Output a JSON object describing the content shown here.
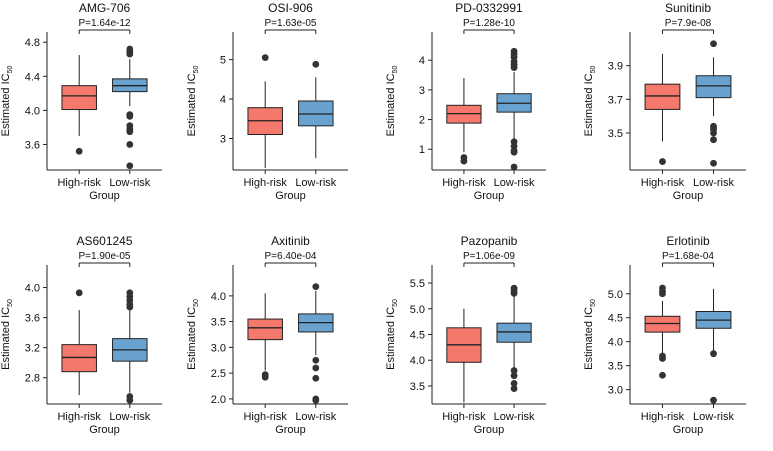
{
  "colors": {
    "high": "#f4786b",
    "low": "#6aa2cf",
    "stroke": "#222222"
  },
  "chart_data": [
    {
      "type": "boxplot",
      "title": "AMG-706",
      "p_label": "P=1.64e-12",
      "ylim": [
        3.3,
        4.92
      ],
      "yticks": [
        "3.6",
        "4.0",
        "4.4",
        "4.8"
      ],
      "ylabel": "Estimated IC",
      "ylabel_sub": "50",
      "xlabel": "Group",
      "categories": [
        "High-risk",
        "Low-risk"
      ],
      "boxes": [
        {
          "min": 3.7,
          "q1": 4.01,
          "median": 4.17,
          "q3": 4.29,
          "max": 4.65,
          "outliers": [
            3.52
          ]
        },
        {
          "min": 4.05,
          "q1": 4.22,
          "median": 4.29,
          "q3": 4.37,
          "max": 4.6,
          "outliers": [
            4.72,
            4.69,
            4.66,
            3.95,
            3.93,
            3.82,
            3.78,
            3.75,
            3.6,
            3.35
          ]
        }
      ]
    },
    {
      "type": "boxplot",
      "title": "OSI-906",
      "p_label": "P=1.63e-05",
      "ylim": [
        2.2,
        5.7
      ],
      "yticks": [
        "3",
        "4",
        "5"
      ],
      "ylabel": "Estimated IC",
      "ylabel_sub": "50",
      "xlabel": "Group",
      "categories": [
        "High-risk",
        "Low-risk"
      ],
      "boxes": [
        {
          "min": 2.25,
          "q1": 3.1,
          "median": 3.45,
          "q3": 3.78,
          "max": 4.45,
          "outliers": [
            5.05
          ]
        },
        {
          "min": 2.5,
          "q1": 3.32,
          "median": 3.62,
          "q3": 3.95,
          "max": 4.55,
          "outliers": [
            4.88
          ]
        }
      ]
    },
    {
      "type": "boxplot",
      "title": "PD-0332991",
      "p_label": "P=1.28e-10",
      "ylim": [
        0.3,
        4.95
      ],
      "yticks": [
        "1",
        "2",
        "3",
        "4"
      ],
      "ylabel": "Estimated IC",
      "ylabel_sub": "50",
      "xlabel": "Group",
      "categories": [
        "High-risk",
        "Low-risk"
      ],
      "boxes": [
        {
          "min": 0.9,
          "q1": 1.88,
          "median": 2.2,
          "q3": 2.48,
          "max": 3.4,
          "outliers": [
            0.72,
            0.6
          ]
        },
        {
          "min": 1.3,
          "q1": 2.25,
          "median": 2.55,
          "q3": 2.87,
          "max": 3.6,
          "outliers": [
            4.3,
            4.2,
            4.1,
            3.95,
            3.85,
            3.75,
            1.25,
            1.1,
            0.95,
            0.9,
            0.4
          ]
        }
      ]
    },
    {
      "type": "boxplot",
      "title": "Sunitinib",
      "p_label": "P=7.9e-08",
      "ylim": [
        3.28,
        4.1
      ],
      "yticks": [
        "3.5",
        "3.7",
        "3.9"
      ],
      "ylabel": "Estimated IC",
      "ylabel_sub": "50",
      "xlabel": "Group",
      "categories": [
        "High-risk",
        "Low-risk"
      ],
      "boxes": [
        {
          "min": 3.45,
          "q1": 3.64,
          "median": 3.72,
          "q3": 3.79,
          "max": 3.97,
          "outliers": [
            3.33
          ]
        },
        {
          "min": 3.6,
          "q1": 3.71,
          "median": 3.78,
          "q3": 3.84,
          "max": 3.95,
          "outliers": [
            4.03,
            3.54,
            3.53,
            3.52,
            3.5,
            3.46,
            3.32
          ]
        }
      ]
    },
    {
      "type": "boxplot",
      "title": "AS601245",
      "p_label": "P=1.90e-05",
      "ylim": [
        2.45,
        4.3
      ],
      "yticks": [
        "2.8",
        "3.2",
        "3.6",
        "4.0"
      ],
      "ylabel": "Estimated IC",
      "ylabel_sub": "50",
      "xlabel": "Group",
      "categories": [
        "High-risk",
        "Low-risk"
      ],
      "boxes": [
        {
          "min": 2.57,
          "q1": 2.88,
          "median": 3.07,
          "q3": 3.24,
          "max": 3.7,
          "outliers": [
            3.93
          ]
        },
        {
          "min": 2.6,
          "q1": 3.02,
          "median": 3.17,
          "q3": 3.32,
          "max": 3.72,
          "outliers": [
            3.93,
            3.88,
            3.83,
            3.78,
            3.74,
            2.55,
            2.5
          ]
        }
      ]
    },
    {
      "type": "boxplot",
      "title": "Axitinib",
      "p_label": "P=6.40e-04",
      "ylim": [
        1.9,
        4.6
      ],
      "yticks": [
        "2.0",
        "2.5",
        "3.0",
        "3.5",
        "4.0"
      ],
      "ylabel": "Estimated IC",
      "ylabel_sub": "50",
      "xlabel": "Group",
      "categories": [
        "High-risk",
        "Low-risk"
      ],
      "boxes": [
        {
          "min": 2.55,
          "q1": 3.15,
          "median": 3.38,
          "q3": 3.55,
          "max": 4.05,
          "outliers": [
            2.47,
            2.42
          ]
        },
        {
          "min": 2.85,
          "q1": 3.3,
          "median": 3.48,
          "q3": 3.65,
          "max": 4.1,
          "outliers": [
            4.18,
            2.75,
            2.6,
            2.4,
            2.0,
            1.97
          ]
        }
      ]
    },
    {
      "type": "boxplot",
      "title": "Pazopanib",
      "p_label": "P=1.06e-09",
      "ylim": [
        3.15,
        5.85
      ],
      "yticks": [
        "3.5",
        "4.0",
        "4.5",
        "5.0",
        "5.5"
      ],
      "ylabel": "Estimated IC",
      "ylabel_sub": "50",
      "xlabel": "Group",
      "categories": [
        "High-risk",
        "Low-risk"
      ],
      "boxes": [
        {
          "min": 3.18,
          "q1": 3.96,
          "median": 4.3,
          "q3": 4.63,
          "max": 5.0,
          "outliers": []
        },
        {
          "min": 3.85,
          "q1": 4.35,
          "median": 4.55,
          "q3": 4.72,
          "max": 5.25,
          "outliers": [
            5.4,
            5.35,
            5.3,
            3.8,
            3.7,
            3.55,
            3.45
          ]
        }
      ]
    },
    {
      "type": "boxplot",
      "title": "Erlotinib",
      "p_label": "P=1.68e-04",
      "ylim": [
        2.7,
        5.6
      ],
      "yticks": [
        "3.0",
        "3.5",
        "4.0",
        "4.5",
        "5.0"
      ],
      "ylabel": "Estimated IC",
      "ylabel_sub": "50",
      "xlabel": "Group",
      "categories": [
        "High-risk",
        "Low-risk"
      ],
      "boxes": [
        {
          "min": 3.75,
          "q1": 4.2,
          "median": 4.38,
          "q3": 4.53,
          "max": 4.85,
          "outliers": [
            5.12,
            5.05,
            5.0,
            3.7,
            3.65,
            3.3
          ]
        },
        {
          "min": 3.8,
          "q1": 4.28,
          "median": 4.45,
          "q3": 4.63,
          "max": 5.1,
          "outliers": [
            3.75,
            2.78
          ]
        }
      ]
    }
  ]
}
